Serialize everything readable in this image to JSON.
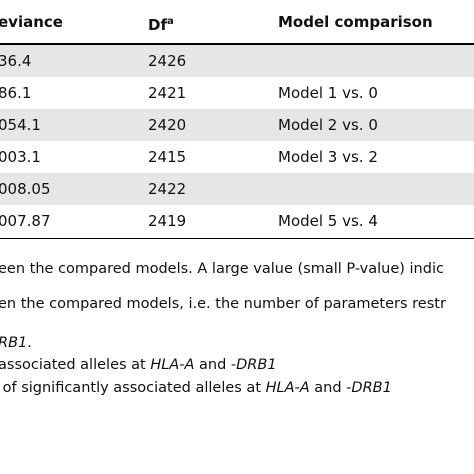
{
  "table": {
    "header": [
      {
        "text": "eviance"
      },
      {
        "text": "Df",
        "sup": "a"
      },
      {
        "text": "Model comparison"
      }
    ],
    "rows": [
      [
        "36.4",
        "2426",
        ""
      ],
      [
        "86.1",
        "2421",
        "Model 1 vs. 0"
      ],
      [
        "054.1",
        "2420",
        "Model 2 vs. 0"
      ],
      [
        "003.1",
        "2415",
        "Model 3 vs. 2"
      ],
      [
        "008.05",
        "2422",
        ""
      ],
      [
        "007.87",
        "2419",
        "Model 5 vs. 4"
      ]
    ]
  },
  "footnotes": [
    [
      {
        "text": "een the compared models. A large value (small P-value) indic",
        "italic": false
      }
    ],
    [
      {
        "text": "en the compared models, i.e. the number of parameters restr",
        "italic": false
      }
    ],
    [
      {
        "text": "RB1",
        "italic": true
      },
      {
        "text": ".",
        "italic": false
      }
    ],
    [
      {
        "text": "associated alleles at ",
        "italic": false
      },
      {
        "text": "HLA-A",
        "italic": true
      },
      {
        "text": " and -",
        "italic": false
      },
      {
        "text": "DRB1",
        "italic": true
      }
    ],
    [
      {
        "text": " of significantly associated alleles at ",
        "italic": false
      },
      {
        "text": "HLA-A",
        "italic": true
      },
      {
        "text": " and -",
        "italic": false
      },
      {
        "text": "DRB1",
        "italic": true
      }
    ]
  ]
}
